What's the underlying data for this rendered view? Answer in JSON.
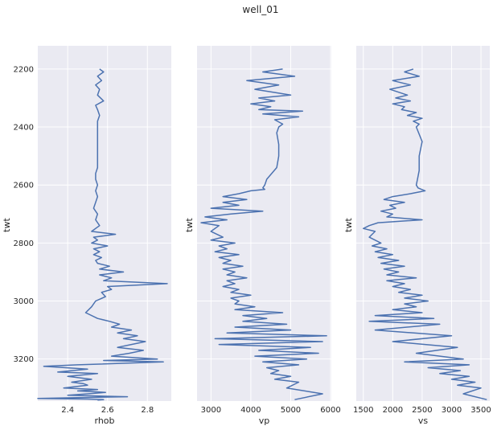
{
  "figure": {
    "title": "well_01"
  },
  "chart_data": [
    {
      "type": "line",
      "xlabel": "rhob",
      "ylabel": "twt",
      "xlim": [
        2.25,
        2.92
      ],
      "ylim": [
        3345,
        2120
      ],
      "xticks": [
        "2.4",
        "2.6",
        "2.8"
      ],
      "yticks": [
        "2200",
        "2400",
        "2600",
        "2800",
        "3000",
        "3200"
      ],
      "grid": true,
      "line_color": "#4c72b0",
      "series": [
        {
          "x": [
            2.56,
            2.58,
            2.55,
            2.57,
            2.54,
            2.56,
            2.55,
            2.58,
            2.54,
            2.55,
            2.56,
            2.55,
            2.55,
            2.55,
            2.55,
            2.55,
            2.55,
            2.54,
            2.54,
            2.55,
            2.54,
            2.55,
            2.54,
            2.53,
            2.55,
            2.54,
            2.56,
            2.52,
            2.64,
            2.53,
            2.55,
            2.52,
            2.6,
            2.53,
            2.56,
            2.53,
            2.57,
            2.54,
            2.55,
            2.61,
            2.56,
            2.68,
            2.56,
            2.62,
            2.58,
            2.9,
            2.6,
            2.62,
            2.57,
            2.59,
            2.54,
            2.52,
            2.49,
            2.55,
            2.61,
            2.66,
            2.62,
            2.72,
            2.65,
            2.75,
            2.68,
            2.79,
            2.72,
            2.65,
            2.78,
            2.71,
            2.62,
            2.85,
            2.58,
            2.88,
            2.45,
            2.28,
            2.5,
            2.35,
            2.55,
            2.4,
            2.52,
            2.42,
            2.48,
            2.5,
            2.38,
            2.55,
            2.45,
            2.59,
            2.5,
            2.4,
            2.7,
            2.45,
            2.25,
            2.5,
            2.58,
            2.55
          ],
          "y": [
            2200,
            2210,
            2225,
            2240,
            2255,
            2270,
            2290,
            2310,
            2325,
            2340,
            2360,
            2380,
            2400,
            2430,
            2470,
            2500,
            2540,
            2560,
            2580,
            2600,
            2620,
            2640,
            2660,
            2680,
            2700,
            2720,
            2740,
            2760,
            2770,
            2780,
            2790,
            2800,
            2810,
            2820,
            2830,
            2840,
            2850,
            2860,
            2870,
            2880,
            2890,
            2900,
            2910,
            2920,
            2930,
            2940,
            2950,
            2960,
            2970,
            2985,
            3000,
            3020,
            3040,
            3060,
            3070,
            3080,
            3090,
            3100,
            3110,
            3120,
            3130,
            3140,
            3150,
            3160,
            3170,
            3180,
            3190,
            3200,
            3205,
            3210,
            3220,
            3225,
            3235,
            3245,
            3250,
            3260,
            3270,
            3280,
            3285,
            3290,
            3300,
            3305,
            3310,
            3315,
            3320,
            3325,
            3330,
            3333,
            3336,
            3338,
            3340,
            3342
          ]
        }
      ]
    },
    {
      "type": "line",
      "xlabel": "vp",
      "ylabel": "twt",
      "xlim": [
        2650,
        6020
      ],
      "ylim": [
        3345,
        2120
      ],
      "xticks": [
        "3000",
        "4000",
        "5000",
        "6000"
      ],
      "yticks": [
        "2200",
        "2400",
        "2600",
        "2800",
        "3000",
        "3200"
      ],
      "grid": true,
      "line_color": "#4c72b0",
      "series": [
        {
          "x": [
            4800,
            4300,
            5100,
            3900,
            4700,
            4100,
            5000,
            4200,
            4600,
            4000,
            4500,
            4200,
            5300,
            4300,
            5200,
            4600,
            4800,
            4700,
            4650,
            4700,
            4700,
            4650,
            4400,
            4350,
            4300,
            4350,
            4000,
            3700,
            3300,
            3900,
            3300,
            3700,
            3000,
            4300,
            3500,
            2850,
            3400,
            2750,
            3200,
            3000,
            3300,
            3000,
            3600,
            3200,
            3400,
            3100,
            3700,
            3200,
            3500,
            3300,
            3800,
            3300,
            3600,
            3400,
            3900,
            3400,
            3600,
            3300,
            3700,
            3500,
            4000,
            3500,
            3700,
            3600,
            4100,
            3600,
            4800,
            3800,
            4400,
            3800,
            4900,
            3600,
            5000,
            3400,
            5900,
            3100,
            5800,
            3200,
            5500,
            4200,
            5700,
            4100,
            5400,
            4300,
            5200,
            4400,
            4700,
            4500,
            5000,
            4600,
            5200,
            4900,
            5800,
            5100
          ],
          "y": [
            2200,
            2210,
            2225,
            2240,
            2255,
            2270,
            2290,
            2300,
            2310,
            2320,
            2330,
            2340,
            2345,
            2355,
            2365,
            2375,
            2390,
            2400,
            2420,
            2460,
            2500,
            2540,
            2580,
            2600,
            2610,
            2615,
            2620,
            2630,
            2640,
            2650,
            2660,
            2670,
            2680,
            2690,
            2700,
            2710,
            2720,
            2730,
            2740,
            2760,
            2780,
            2790,
            2800,
            2810,
            2820,
            2830,
            2840,
            2850,
            2860,
            2870,
            2880,
            2890,
            2900,
            2910,
            2920,
            2930,
            2940,
            2950,
            2960,
            2970,
            2980,
            2990,
            3000,
            3010,
            3020,
            3030,
            3040,
            3050,
            3060,
            3070,
            3080,
            3090,
            3100,
            3110,
            3120,
            3130,
            3140,
            3150,
            3160,
            3170,
            3180,
            3190,
            3200,
            3210,
            3220,
            3230,
            3240,
            3250,
            3260,
            3270,
            3280,
            3300,
            3320,
            3340
          ]
        }
      ]
    },
    {
      "type": "line",
      "xlabel": "vs",
      "ylabel": "twt",
      "xlim": [
        1380,
        3650
      ],
      "ylim": [
        3345,
        2120
      ],
      "xticks": [
        "1500",
        "2000",
        "2500",
        "3000",
        "3500"
      ],
      "yticks": [
        "2200",
        "2400",
        "2600",
        "2800",
        "3000",
        "3200"
      ],
      "grid": true,
      "line_color": "#4c72b0",
      "series": [
        {
          "x": [
            2350,
            2200,
            2450,
            2000,
            2300,
            1950,
            2250,
            2050,
            2300,
            2000,
            2200,
            2150,
            2400,
            2250,
            2500,
            2350,
            2450,
            2400,
            2500,
            2450,
            2450,
            2420,
            2400,
            2430,
            2550,
            2300,
            2000,
            1850,
            2200,
            1950,
            2050,
            1800,
            2000,
            1900,
            2500,
            1750,
            1600,
            1500,
            1700,
            1600,
            1800,
            1650,
            1900,
            1700,
            2000,
            1750,
            2100,
            1800,
            2200,
            1850,
            2100,
            1900,
            2400,
            1900,
            2200,
            2000,
            2300,
            2100,
            2500,
            2200,
            2600,
            2200,
            2400,
            2000,
            2500,
            1700,
            2700,
            1600,
            2800,
            1700,
            3000,
            2000,
            3100,
            2400,
            3200,
            2200,
            3300,
            2600,
            3150,
            2800,
            3300,
            3000,
            3400,
            3100,
            3500,
            3200,
            3600
          ],
          "y": [
            2200,
            2210,
            2225,
            2240,
            2255,
            2270,
            2290,
            2300,
            2310,
            2320,
            2330,
            2340,
            2350,
            2360,
            2370,
            2380,
            2390,
            2400,
            2450,
            2500,
            2550,
            2580,
            2600,
            2610,
            2620,
            2630,
            2640,
            2650,
            2660,
            2670,
            2680,
            2690,
            2700,
            2710,
            2720,
            2730,
            2740,
            2750,
            2760,
            2780,
            2800,
            2810,
            2820,
            2830,
            2840,
            2850,
            2860,
            2870,
            2880,
            2890,
            2900,
            2910,
            2920,
            2930,
            2940,
            2950,
            2960,
            2970,
            2980,
            2990,
            3000,
            3010,
            3020,
            3030,
            3040,
            3050,
            3060,
            3070,
            3080,
            3100,
            3120,
            3140,
            3160,
            3180,
            3200,
            3210,
            3220,
            3230,
            3240,
            3250,
            3260,
            3270,
            3280,
            3290,
            3300,
            3320,
            3340
          ]
        }
      ]
    }
  ]
}
